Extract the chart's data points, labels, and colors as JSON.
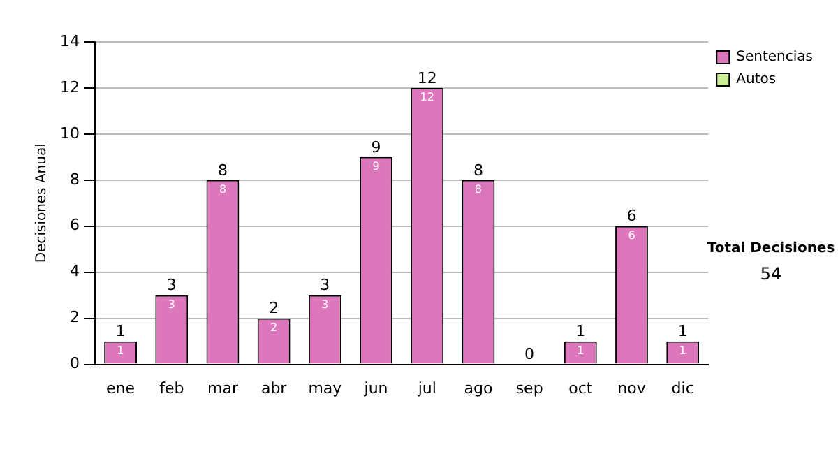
{
  "chart_data": {
    "type": "bar",
    "ylabel": "Decisiones Anual",
    "categories": [
      "ene",
      "feb",
      "mar",
      "abr",
      "may",
      "jun",
      "jul",
      "ago",
      "sep",
      "oct",
      "nov",
      "dic"
    ],
    "series": [
      {
        "name": "Sentencias",
        "color": "#dd77bb",
        "values": [
          1,
          3,
          8,
          2,
          3,
          9,
          12,
          8,
          0,
          1,
          6,
          1
        ],
        "value_labels": [
          "1",
          "3",
          "8",
          "2",
          "3",
          "9",
          "12",
          "8",
          null,
          "1",
          "6",
          "1"
        ]
      },
      {
        "name": "Autos",
        "color": "#ccee99",
        "values": [
          0,
          0,
          0,
          0,
          0,
          0,
          0,
          0,
          0,
          0,
          0,
          0
        ]
      }
    ],
    "stacked": true,
    "totals": [
      "1",
      "3",
      "8",
      "2",
      "3",
      "9",
      "12",
      "8",
      "0",
      "1",
      "6",
      "1"
    ],
    "ylim": [
      0,
      14
    ],
    "yticks": [
      0,
      2,
      4,
      6,
      8,
      10,
      12,
      14
    ],
    "grid": "y",
    "legend": "right",
    "annotations": [
      "Total Decisiones",
      "54"
    ]
  }
}
